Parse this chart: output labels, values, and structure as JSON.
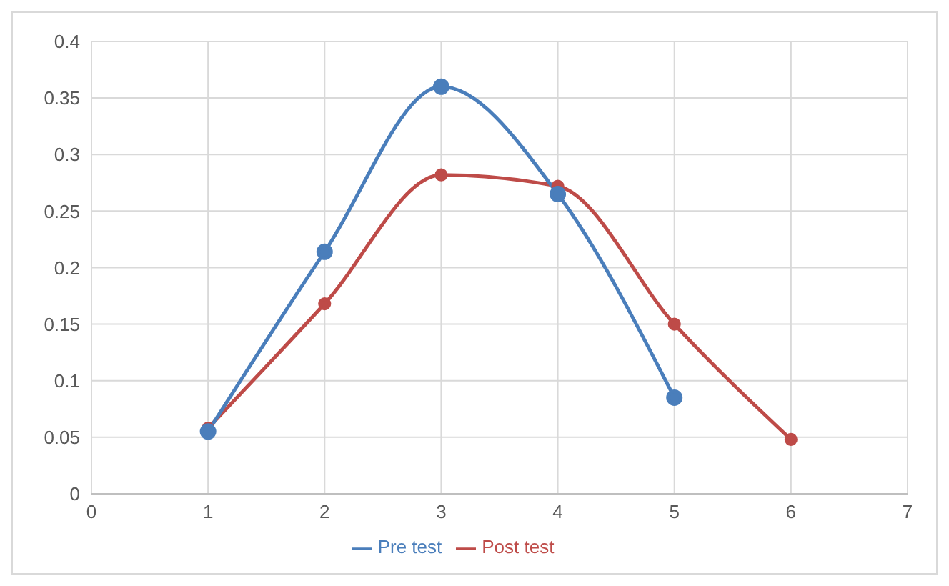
{
  "chart_data": {
    "type": "line",
    "x": [
      1,
      2,
      3,
      4,
      5,
      6
    ],
    "series": [
      {
        "name": "Pre test",
        "color": "#4a7ebb",
        "values": [
          0.055,
          0.214,
          0.36,
          0.265,
          0.085,
          null
        ]
      },
      {
        "name": "Post test",
        "color": "#be4b48",
        "values": [
          0.058,
          0.168,
          0.282,
          0.272,
          0.15,
          0.048
        ]
      }
    ],
    "xlim": [
      0,
      7
    ],
    "xticks": [
      0,
      1,
      2,
      3,
      4,
      5,
      6,
      7
    ],
    "ylim": [
      0,
      0.4
    ],
    "yticks": [
      0,
      0.05,
      0.1,
      0.15,
      0.2,
      0.25,
      0.3,
      0.35,
      0.4
    ],
    "grid": true,
    "legend": "bottom",
    "marker": "circle",
    "line_style": "solid"
  }
}
